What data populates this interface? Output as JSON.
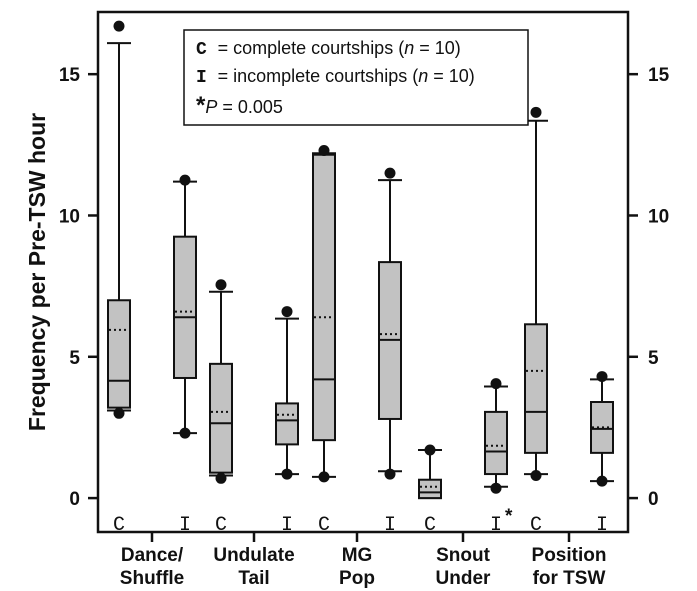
{
  "chart_data": {
    "type": "box",
    "title": "",
    "xlabel": "",
    "ylabel": "Frequency per Pre-TSW hour",
    "ylim": [
      -1.2,
      17.2
    ],
    "yticks": [
      0,
      5,
      10,
      15
    ],
    "grid": false,
    "legend_placement": "top-center",
    "legend": {
      "line1": {
        "code": "C",
        "rest": "= complete courtships (",
        "n": "n",
        "after": "= 10)"
      },
      "line2": {
        "code": "I",
        "rest": "= incomplete courtships (",
        "n": "n",
        "after": "= 10)"
      },
      "line3": {
        "star": "*",
        "p": "P",
        "rest": "= 0.005"
      }
    },
    "categories": [
      {
        "lines": [
          "Dance/",
          "Shuffle"
        ]
      },
      {
        "lines": [
          "Undulate",
          "Tail"
        ]
      },
      {
        "lines": [
          "MG",
          "Pop"
        ]
      },
      {
        "lines": [
          "Snout",
          "Under"
        ]
      },
      {
        "lines": [
          "Position",
          "for TSW"
        ]
      }
    ],
    "box_code_labels": [
      "C",
      "I"
    ],
    "significance_marker": "*",
    "boxes": [
      {
        "category": 0,
        "group": "C",
        "outlier_low": 3.0,
        "whisker_low": 3.1,
        "q1": 3.2,
        "median": 4.15,
        "mean": 5.95,
        "q3": 7.0,
        "whisker_high": 16.1,
        "outlier_high": 16.7
      },
      {
        "category": 0,
        "group": "I",
        "outlier_low": 2.3,
        "whisker_low": 2.3,
        "q1": 4.25,
        "median": 6.4,
        "mean": 6.6,
        "q3": 9.25,
        "whisker_high": 11.2,
        "outlier_high": 11.25
      },
      {
        "category": 1,
        "group": "C",
        "outlier_low": 0.7,
        "whisker_low": 0.8,
        "q1": 0.9,
        "median": 2.65,
        "mean": 3.05,
        "q3": 4.75,
        "whisker_high": 7.3,
        "outlier_high": 7.55
      },
      {
        "category": 1,
        "group": "I",
        "outlier_low": 0.85,
        "whisker_low": 0.85,
        "q1": 1.9,
        "median": 2.75,
        "mean": 2.95,
        "q3": 3.35,
        "whisker_high": 6.35,
        "outlier_high": 6.6
      },
      {
        "category": 2,
        "group": "C",
        "outlier_low": 0.75,
        "whisker_low": 0.75,
        "q1": 2.05,
        "median": 4.2,
        "mean": 6.4,
        "q3": 12.15,
        "whisker_high": 12.2,
        "outlier_high": 12.3
      },
      {
        "category": 2,
        "group": "I",
        "outlier_low": 0.85,
        "whisker_low": 0.95,
        "q1": 2.8,
        "median": 5.6,
        "mean": 5.8,
        "q3": 8.35,
        "whisker_high": 11.25,
        "outlier_high": 11.5
      },
      {
        "category": 3,
        "group": "C",
        "outlier_low": null,
        "whisker_low": 0.0,
        "q1": 0.0,
        "median": 0.2,
        "mean": 0.4,
        "q3": 0.65,
        "whisker_high": 1.7,
        "outlier_high": 1.7
      },
      {
        "category": 3,
        "group": "I",
        "outlier_low": 0.35,
        "whisker_low": 0.4,
        "q1": 0.85,
        "median": 1.65,
        "mean": 1.85,
        "q3": 3.05,
        "whisker_high": 3.95,
        "outlier_high": 4.05
      },
      {
        "category": 4,
        "group": "C",
        "outlier_low": 0.8,
        "whisker_low": 0.85,
        "q1": 1.6,
        "median": 3.05,
        "mean": 4.5,
        "q3": 6.15,
        "whisker_high": 13.35,
        "outlier_high": 13.65
      },
      {
        "category": 4,
        "group": "I",
        "outlier_low": 0.6,
        "whisker_low": 0.6,
        "q1": 1.6,
        "median": 2.45,
        "mean": 2.5,
        "q3": 3.4,
        "whisker_high": 4.2,
        "outlier_high": 4.3
      }
    ],
    "significant_box": {
      "category": 3,
      "group": "I"
    },
    "colors": {
      "box_fill": "#c2c2c2",
      "stroke": "#111111",
      "background": "#ffffff"
    }
  }
}
